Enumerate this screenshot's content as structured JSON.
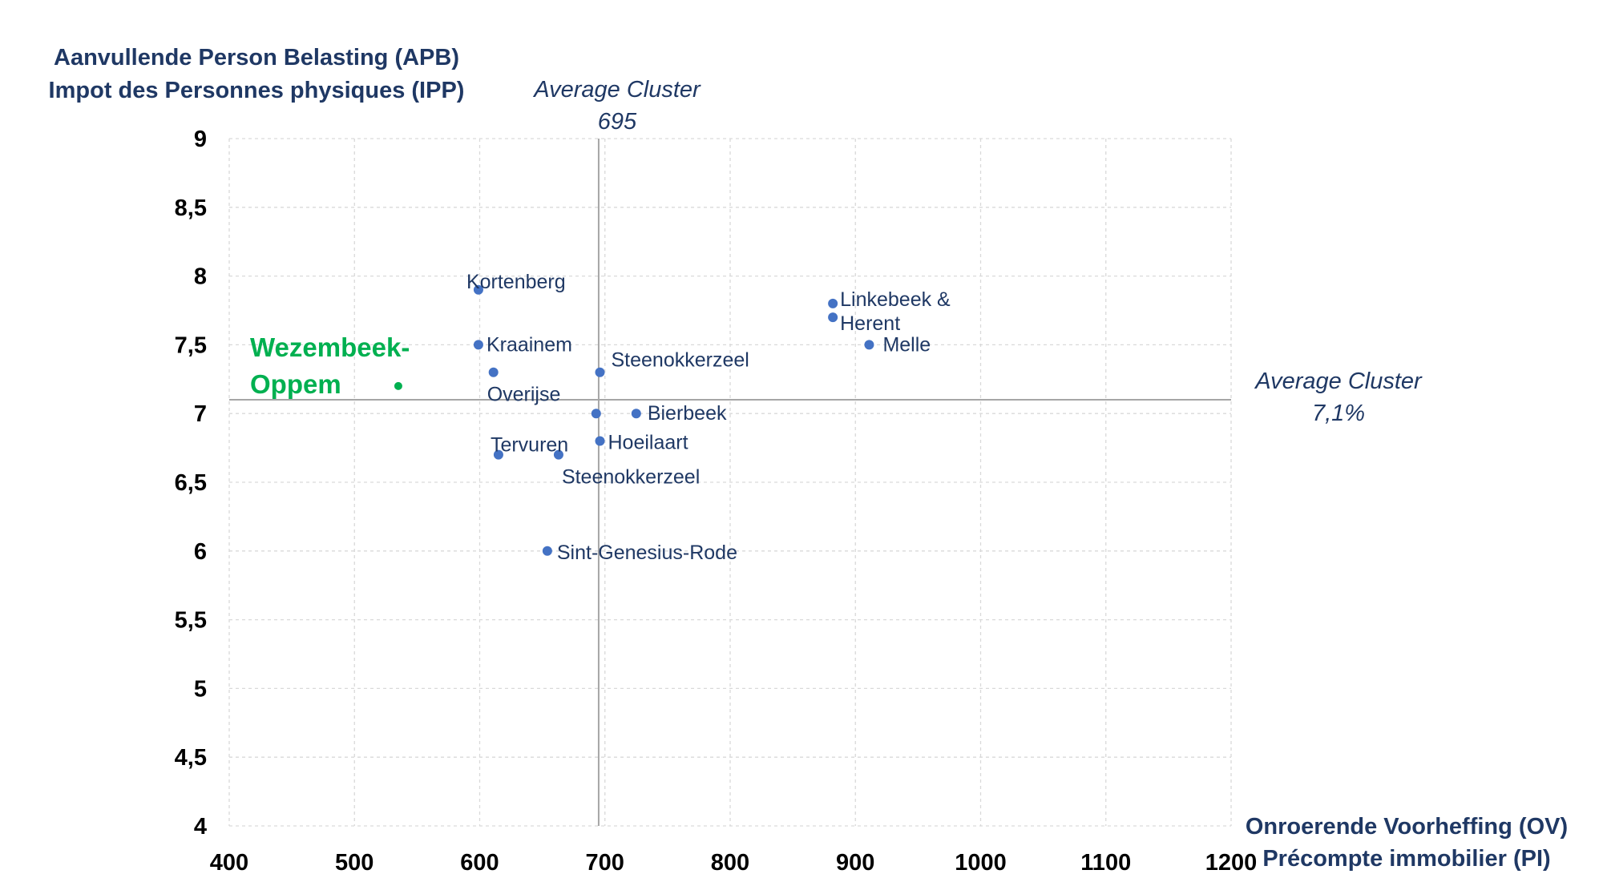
{
  "chart_data": {
    "type": "scatter",
    "y_title_lines": [
      "Aanvullende Person Belasting (APB)",
      "Impot des Personnes physiques (IPP)"
    ],
    "x_title_lines": [
      "Onroerende Voorheffing (OV)",
      "Précompte immobilier (PI)"
    ],
    "xlim": [
      400,
      1200
    ],
    "ylim": [
      4,
      9
    ],
    "x_ticks": [
      400,
      500,
      600,
      700,
      800,
      900,
      1000,
      1100,
      1200
    ],
    "x_tick_labels": [
      "400",
      "500",
      "600",
      "700",
      "800",
      "900",
      "1000",
      "1100",
      "1200"
    ],
    "y_ticks": [
      4,
      4.5,
      5,
      5.5,
      6,
      6.5,
      7,
      7.5,
      8,
      8.5,
      9
    ],
    "y_tick_labels": [
      "4",
      "4,5",
      "5",
      "5,5",
      "6",
      "6,5",
      "7",
      "7,5",
      "8",
      "8,5",
      "9"
    ],
    "grid": true,
    "avg_x": {
      "value": 695,
      "label_lines": [
        "Average Cluster",
        "695"
      ]
    },
    "avg_y": {
      "value": 7.1,
      "label_lines": [
        "Average Cluster",
        "7,1%"
      ]
    },
    "colors": {
      "points": "#4472C4",
      "highlight": "#00B050",
      "text": "#1F3864",
      "grid": "#D9D9D9",
      "avg_line": "#A6A6A6"
    },
    "points": [
      {
        "label": "Kortenberg",
        "x": 599,
        "y": 7.9
      },
      {
        "label": "Kraainem",
        "x": 599,
        "y": 7.5
      },
      {
        "label": "Overijse",
        "x": 611,
        "y": 7.3
      },
      {
        "label": "Tervuren",
        "x": 615,
        "y": 6.7
      },
      {
        "label": "Steenokkerzeel",
        "x": 663,
        "y": 6.7
      },
      {
        "label": "Sint-Genesius-Rode",
        "x": 654,
        "y": 6.0
      },
      {
        "label": "",
        "x": 693,
        "y": 7.0
      },
      {
        "label": "Hoeilaart",
        "x": 696,
        "y": 6.8
      },
      {
        "label": "Steenokkerzeel",
        "x": 696,
        "y": 7.3
      },
      {
        "label": "Bierbeek",
        "x": 725,
        "y": 7.0
      },
      {
        "label": "Linkebeek &",
        "x": 882,
        "y": 7.8
      },
      {
        "label": "Herent",
        "x": 882,
        "y": 7.7
      },
      {
        "label": "Melle",
        "x": 911,
        "y": 7.5
      }
    ],
    "highlight_point": {
      "label_lines": [
        "Wezembeek-",
        "Oppem"
      ],
      "x": 535,
      "y": 7.2
    }
  }
}
